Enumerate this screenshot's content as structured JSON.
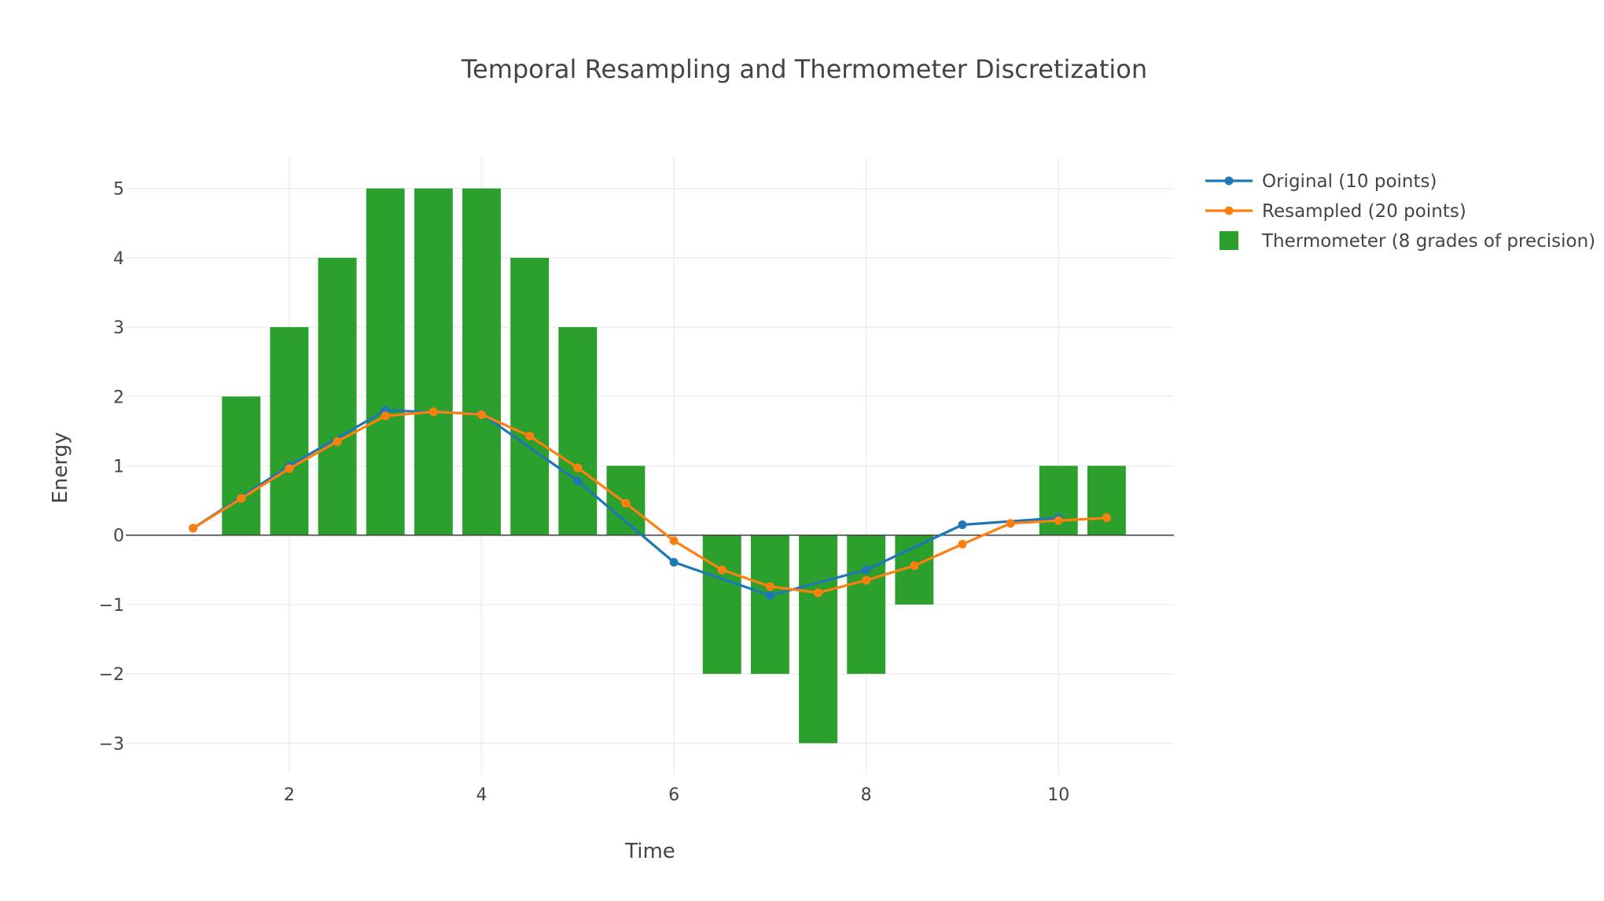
{
  "chart_data": {
    "type": "bar",
    "title": "Temporal Resampling and Thermometer Discretization",
    "xlabel": "Time",
    "ylabel": "Energy",
    "xlim": [
      0.3,
      11.2
    ],
    "ylim": [
      -3.45,
      5.45
    ],
    "xticks": [
      2,
      4,
      6,
      8,
      10
    ],
    "yticks": [
      5,
      4,
      3,
      2,
      1,
      0,
      -1,
      -2,
      -3
    ],
    "grid": true,
    "legend_position": "top-right",
    "series": [
      {
        "name": "Thermometer (8 grades of precision)",
        "kind": "bar",
        "color": "#2ca02c",
        "bar_width": 0.4,
        "x": [
          1.5,
          2.0,
          2.5,
          3.0,
          3.5,
          4.0,
          4.5,
          5.0,
          5.5,
          6.0,
          6.5,
          7.0,
          7.5,
          8.0,
          8.5,
          9.0,
          9.5,
          10.0,
          10.5
        ],
        "values": [
          2,
          3,
          4,
          5,
          5,
          5,
          4,
          3,
          1,
          0,
          -2,
          -2,
          -3,
          -2,
          -1,
          0,
          0,
          1,
          1
        ]
      },
      {
        "name": "Original (10 points)",
        "kind": "line",
        "color": "#1f77b4",
        "x": [
          1,
          2,
          3,
          4,
          5,
          6,
          7,
          8,
          9,
          10
        ],
        "values": [
          0.1,
          1.0,
          1.8,
          1.75,
          0.78,
          -0.39,
          -0.87,
          -0.5,
          0.15,
          0.25
        ]
      },
      {
        "name": "Resampled (20 points)",
        "kind": "line",
        "color": "#ff7f0e",
        "x": [
          1.0,
          1.5,
          2.0,
          2.5,
          3.0,
          3.5,
          4.0,
          4.5,
          5.0,
          5.5,
          6.0,
          6.5,
          7.0,
          7.5,
          8.0,
          8.5,
          9.0,
          9.5,
          10.0,
          10.5
        ],
        "values": [
          0.1,
          0.53,
          0.96,
          1.35,
          1.72,
          1.78,
          1.74,
          1.43,
          0.97,
          0.46,
          -0.08,
          -0.5,
          -0.74,
          -0.83,
          -0.65,
          -0.44,
          -0.13,
          0.17,
          0.21,
          0.25
        ]
      }
    ]
  }
}
